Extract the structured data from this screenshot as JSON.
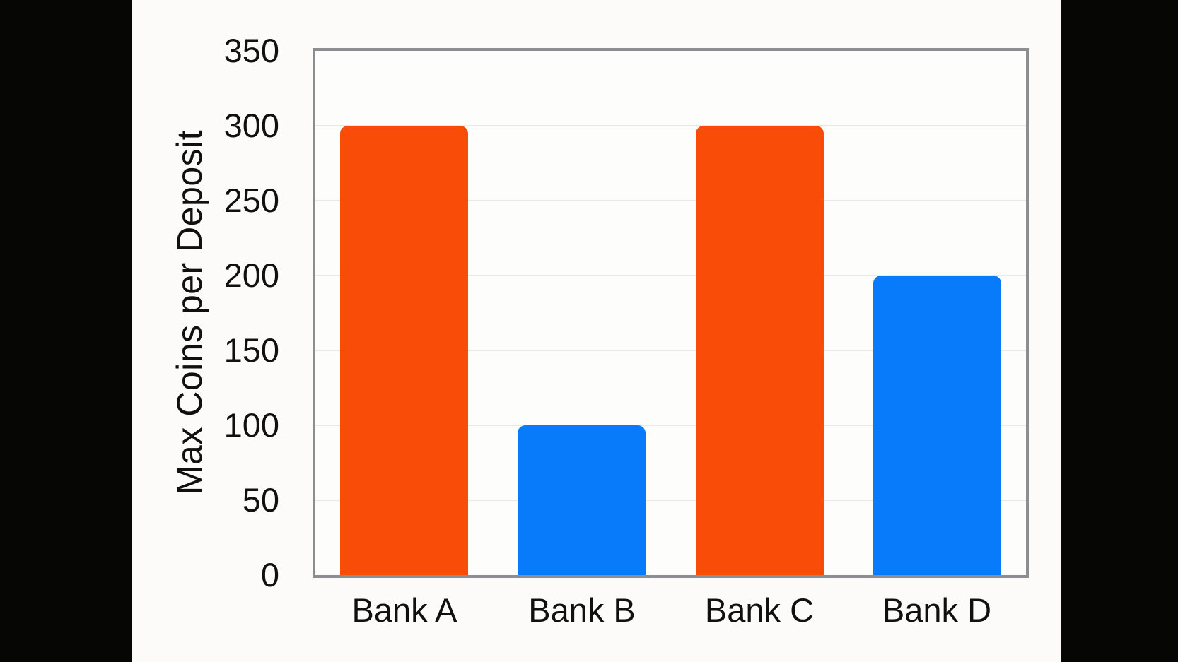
{
  "chart_data": {
    "type": "bar",
    "title": "",
    "xlabel": "",
    "ylabel": "Max Coins per Deposit",
    "categories": [
      "Bank A",
      "Bank B",
      "Bank C",
      "Bank D"
    ],
    "values": [
      300,
      100,
      300,
      200
    ],
    "bar_colors": [
      "#fa4c09",
      "#077bf9",
      "#fa4c09",
      "#077bf9"
    ],
    "ylim": [
      0,
      350
    ],
    "yticks": [
      0,
      50,
      100,
      150,
      200,
      250,
      300,
      350
    ],
    "grid": true,
    "legend": false
  },
  "colors": {
    "bar_orange": "#fa4c09",
    "bar_blue": "#077bf9",
    "plot_border": "#8b8d90",
    "gridline": "#e9e9e6",
    "slide_background": "#fcfbf9",
    "letterbox_black": "#060605",
    "text": "#101010"
  }
}
